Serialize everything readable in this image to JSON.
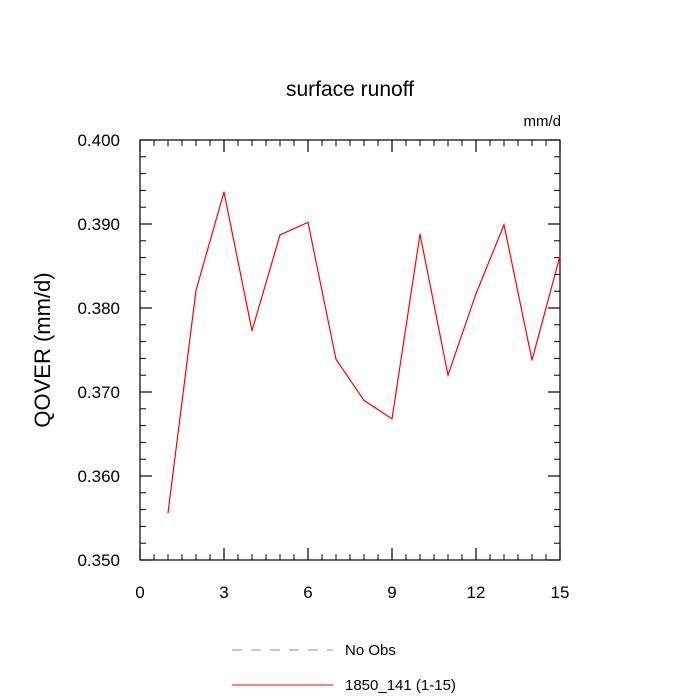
{
  "chart_data": {
    "type": "line",
    "title": "surface runoff",
    "units": "mm/d",
    "ylabel": "QOVER  (mm/d)",
    "xlabel": "",
    "xlim": [
      0,
      15
    ],
    "ylim": [
      0.35,
      0.4
    ],
    "x_ticks": [
      "0",
      "3",
      "6",
      "9",
      "12",
      "15"
    ],
    "y_ticks": [
      "0.350",
      "0.360",
      "0.370",
      "0.380",
      "0.390",
      "0.400"
    ],
    "grid": false,
    "legend_position": "bottom",
    "series": [
      {
        "name": "1850_141 (1-15)",
        "color": "#ff0000",
        "style": "solid",
        "x": [
          1,
          2,
          3,
          4,
          5,
          6,
          7,
          8,
          9,
          10,
          11,
          12,
          13,
          14,
          15
        ],
        "y": [
          0.3556,
          0.3821,
          0.3938,
          0.3773,
          0.3887,
          0.3902,
          0.3739,
          0.369,
          0.3668,
          0.3888,
          0.372,
          0.3817,
          0.3899,
          0.3738,
          0.3862
        ]
      }
    ],
    "legend": [
      {
        "name": "No Obs",
        "color": "#8080ff",
        "style": "dashed"
      },
      {
        "name": "1850_141 (1-15)",
        "color": "#ff0000",
        "style": "solid"
      }
    ]
  }
}
